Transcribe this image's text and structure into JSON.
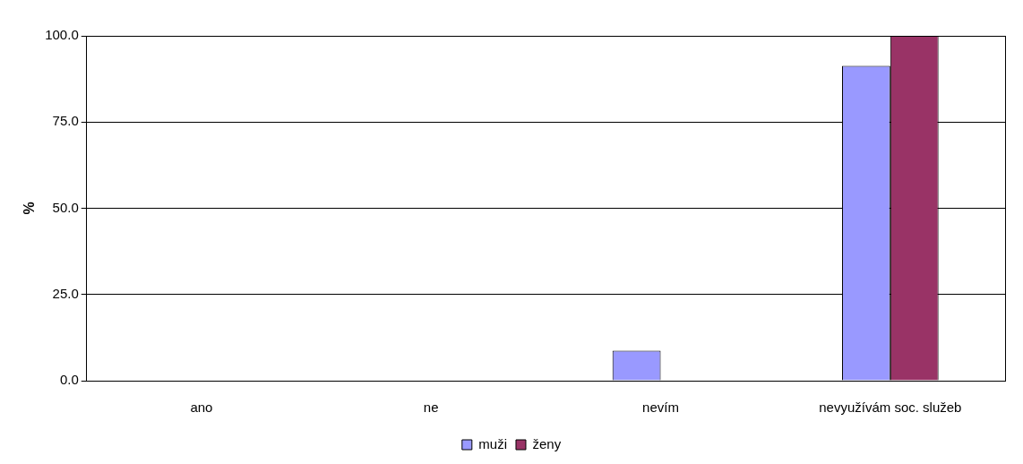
{
  "chart_data": {
    "type": "bar",
    "ylabel": "%",
    "categories": [
      "ano",
      "ne",
      "nevím",
      "nevyužívám soc. služeb"
    ],
    "series": [
      {
        "name": "muži",
        "color": "#9999ff",
        "values": [
          0,
          0,
          8.7,
          91.3
        ]
      },
      {
        "name": "ženy",
        "color": "#993366",
        "values": [
          0,
          0,
          0,
          100
        ]
      }
    ],
    "ylim": [
      0,
      100
    ],
    "yticks": [
      {
        "value": 0,
        "label": "0.0"
      },
      {
        "value": 25,
        "label": "25.0"
      },
      {
        "value": 50,
        "label": "50.0"
      },
      {
        "value": 75,
        "label": "75.0"
      },
      {
        "value": 100,
        "label": "100.0"
      }
    ],
    "grid": "y",
    "legend": "bottom"
  }
}
